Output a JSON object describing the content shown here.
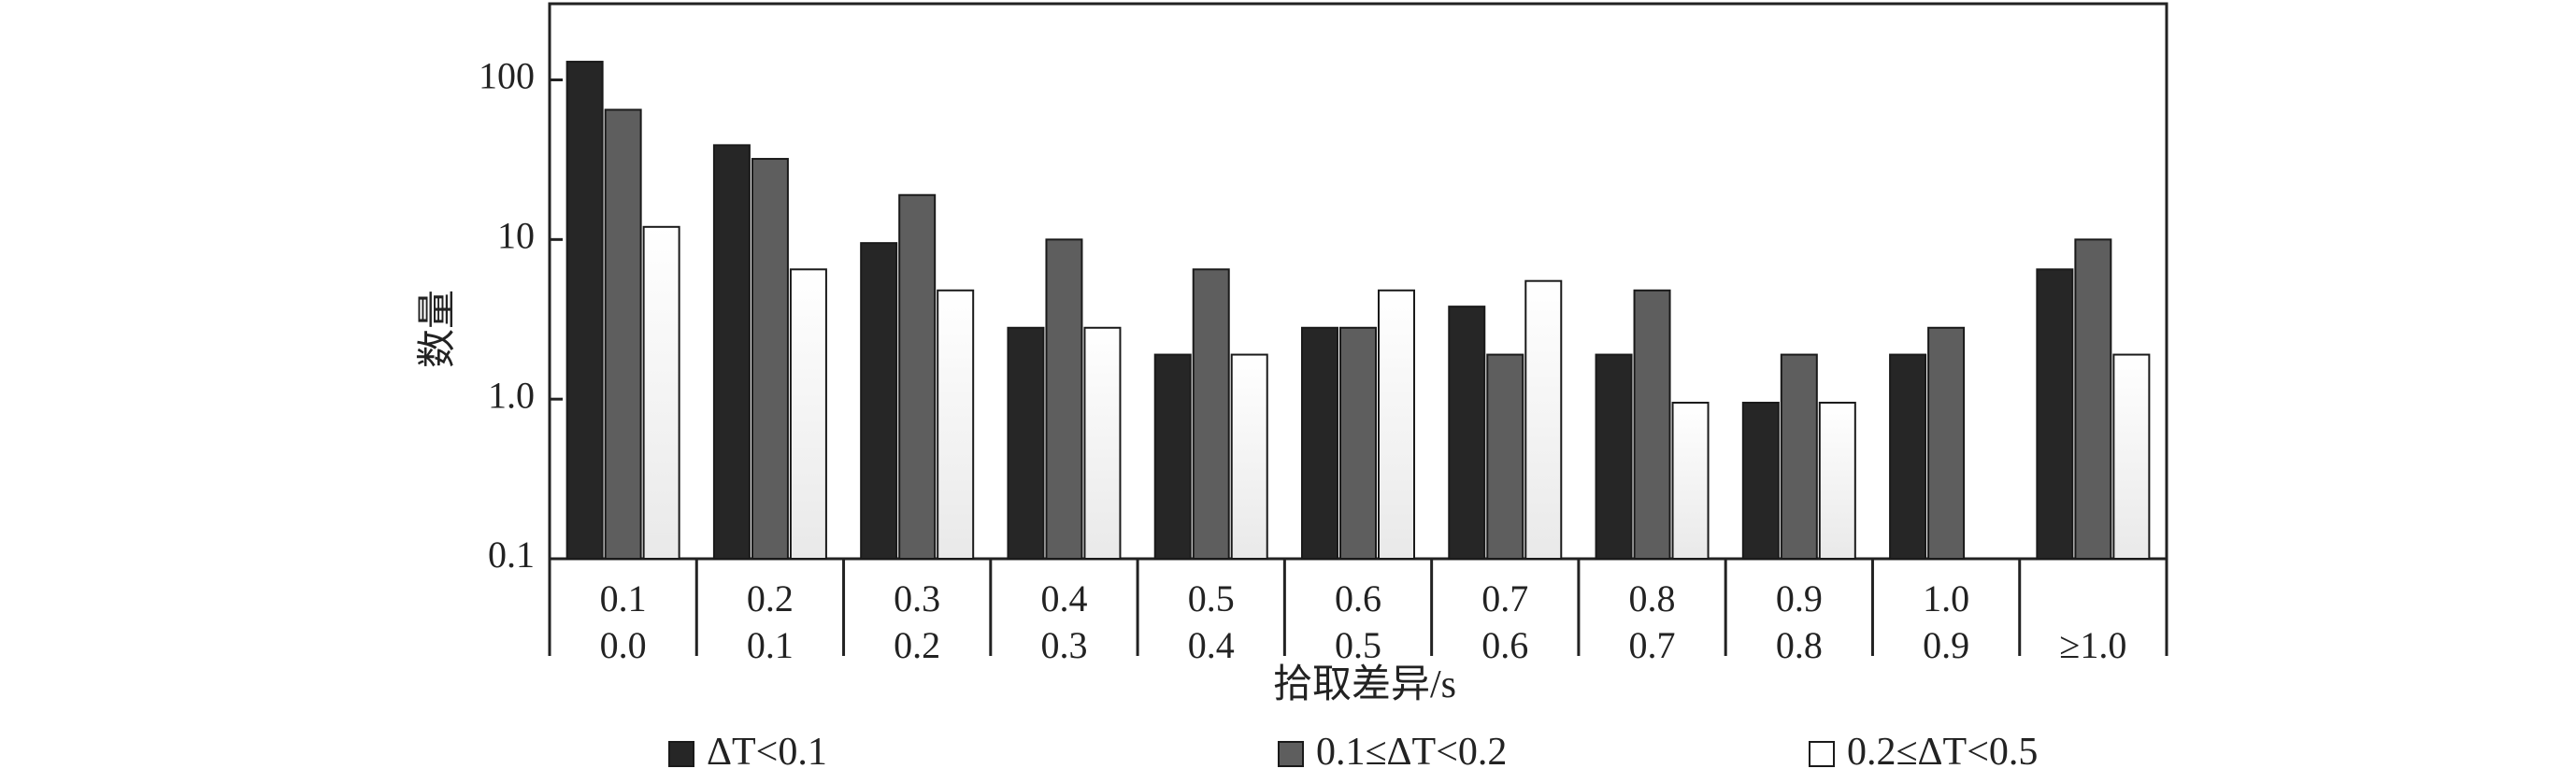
{
  "chart_data": {
    "type": "bar",
    "xlabel": "拾取差异/s",
    "ylabel": "数量",
    "yscale": "log",
    "ylim": [
      0.1,
      300
    ],
    "yticks": [
      "100",
      "10",
      "1.0",
      "0.1"
    ],
    "categories": [
      {
        "top": "0.1",
        "bottom": "0.0"
      },
      {
        "top": "0.2",
        "bottom": "0.1"
      },
      {
        "top": "0.3",
        "bottom": "0.2"
      },
      {
        "top": "0.4",
        "bottom": "0.3"
      },
      {
        "top": "0.5",
        "bottom": "0.4"
      },
      {
        "top": "0.6",
        "bottom": "0.5"
      },
      {
        "top": "0.7",
        "bottom": "0.6"
      },
      {
        "top": "0.8",
        "bottom": "0.7"
      },
      {
        "top": "0.9",
        "bottom": "0.8"
      },
      {
        "top": "1.0",
        "bottom": "0.9"
      },
      {
        "top": "",
        "bottom": "≥1.0"
      }
    ],
    "series": [
      {
        "name": "ΔT<0.1",
        "color": "#262626",
        "values": [
          130,
          39,
          9.5,
          2.8,
          1.9,
          2.8,
          3.8,
          1.9,
          0.95,
          1.9,
          6.5
        ]
      },
      {
        "name": "0.1≤ΔT<0.2",
        "color": "#5e5e5e",
        "values": [
          65,
          32,
          19,
          10,
          6.5,
          2.8,
          1.9,
          4.8,
          1.9,
          2.8,
          10
        ]
      },
      {
        "name": "0.2≤ΔT<0.5",
        "color": "#f2f2f2",
        "values": [
          12,
          6.5,
          4.8,
          2.8,
          1.9,
          4.8,
          5.5,
          0.95,
          0.95,
          null,
          1.9
        ]
      }
    ],
    "legend_position": "bottom",
    "grid": false
  }
}
